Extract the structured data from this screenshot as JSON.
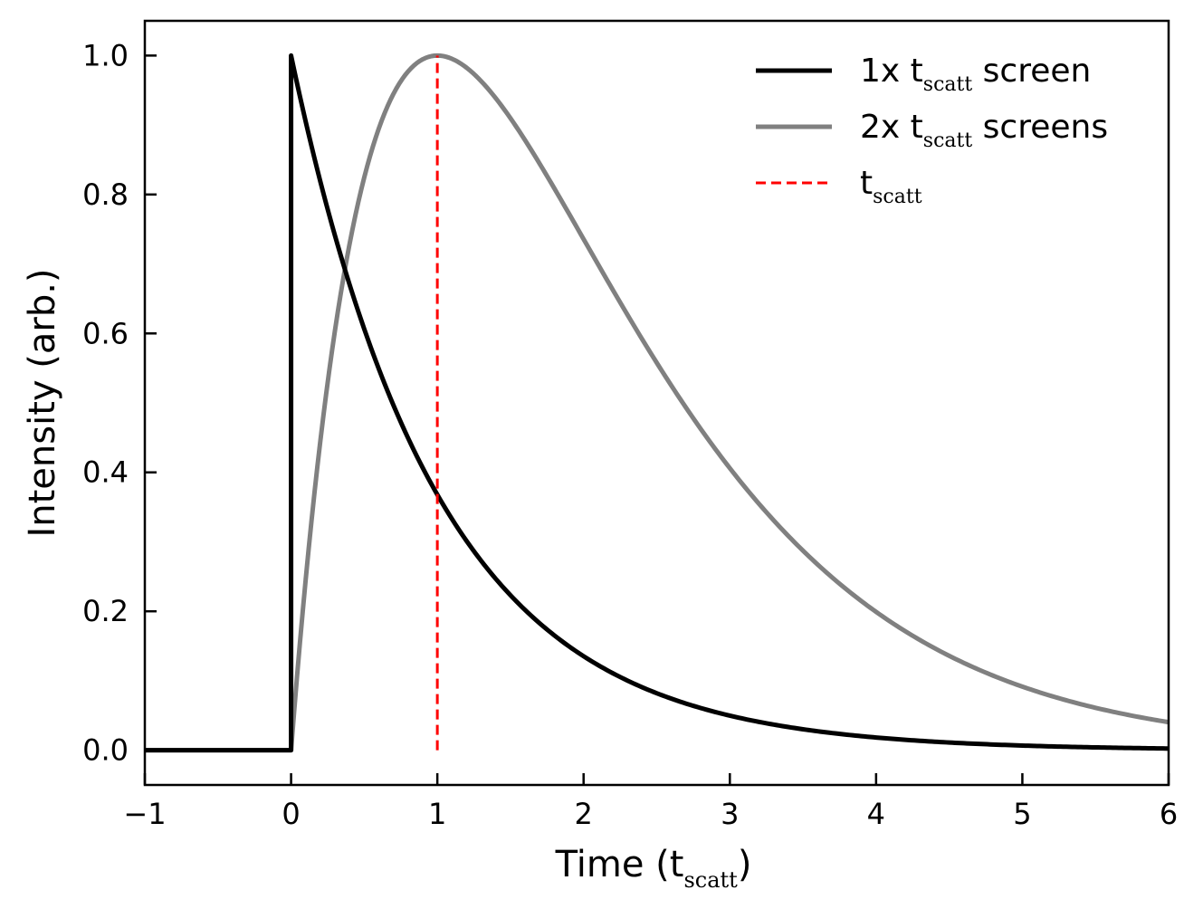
{
  "chart_data": {
    "type": "line",
    "xlabel": {
      "main": "Time (t",
      "sub": "scatt",
      "close": ")"
    },
    "ylabel": "Intensity (arb.)",
    "xlim": [
      -1,
      6
    ],
    "ylim": [
      -0.05,
      1.05
    ],
    "xticks": [
      -1,
      0,
      1,
      2,
      3,
      4,
      5,
      6
    ],
    "xtick_labels": [
      "−1",
      "0",
      "1",
      "2",
      "3",
      "4",
      "5",
      "6"
    ],
    "yticks": [
      0.0,
      0.2,
      0.4,
      0.6,
      0.8,
      1.0
    ],
    "ytick_labels": [
      "0.0",
      "0.2",
      "0.4",
      "0.6",
      "0.8",
      "1.0"
    ],
    "grid": false,
    "legend_position": "top-right",
    "series": [
      {
        "name": "1x t_scatt screen",
        "legend": {
          "pre": "1x t",
          "sub": "scatt",
          "post": " screen"
        },
        "model": "single-screen",
        "color": "#000000",
        "style": "solid",
        "points": [
          [
            -1,
            0
          ],
          [
            0,
            0
          ],
          [
            0,
            1.0
          ],
          [
            0.2,
            0.819
          ],
          [
            0.4,
            0.67
          ],
          [
            0.6,
            0.549
          ],
          [
            0.8,
            0.449
          ],
          [
            1.0,
            0.368
          ],
          [
            1.5,
            0.223
          ],
          [
            2.0,
            0.135
          ],
          [
            2.5,
            0.082
          ],
          [
            3.0,
            0.05
          ],
          [
            4.0,
            0.018
          ],
          [
            5.0,
            0.007
          ],
          [
            6.0,
            0.002
          ]
        ]
      },
      {
        "name": "2x t_scatt screens",
        "legend": {
          "pre": "2x t",
          "sub": "scatt",
          "post": " screens"
        },
        "model": "double-screen",
        "color": "#808080",
        "style": "solid",
        "points": [
          [
            -1,
            0
          ],
          [
            0,
            0
          ],
          [
            0.2,
            0.445
          ],
          [
            0.4,
            0.729
          ],
          [
            0.6,
            0.895
          ],
          [
            0.8,
            0.978
          ],
          [
            1.0,
            1.0
          ],
          [
            1.5,
            0.91
          ],
          [
            2.0,
            0.736
          ],
          [
            2.5,
            0.558
          ],
          [
            3.0,
            0.406
          ],
          [
            4.0,
            0.199
          ],
          [
            5.0,
            0.092
          ],
          [
            6.0,
            0.04
          ]
        ]
      },
      {
        "name": "t_scatt",
        "legend": {
          "pre": "t",
          "sub": "scatt",
          "post": ""
        },
        "model": "vline",
        "color": "#ff0000",
        "style": "dashed",
        "points": [
          [
            1,
            0
          ],
          [
            1,
            1
          ]
        ]
      }
    ]
  }
}
